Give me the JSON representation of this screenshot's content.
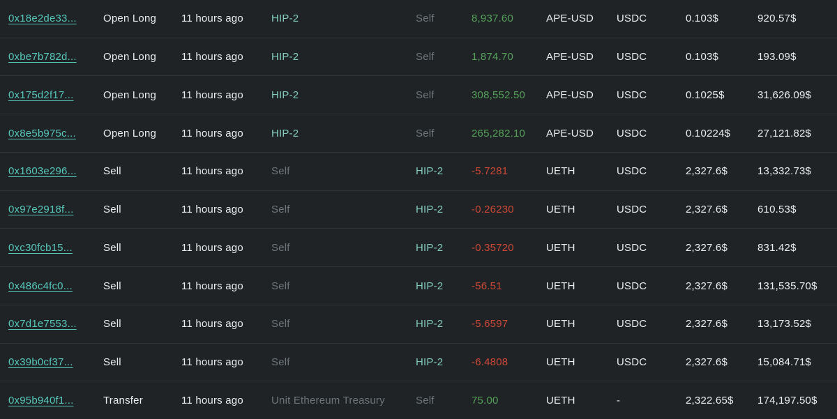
{
  "colors": {
    "background": "#1f2326",
    "accent_teal": "#57c7ba",
    "accent_soft_teal": "#82ccbd",
    "muted_gray": "#6e7679",
    "positive_green": "#55a15a",
    "negative_red": "#cd4736",
    "text_white": "#eceeee"
  },
  "table": {
    "columns": [
      "hash",
      "type",
      "time",
      "from",
      "to",
      "amount",
      "token",
      "quote",
      "price",
      "value"
    ],
    "rows": [
      {
        "hash": "0x18e2de33...",
        "type": "Open Long",
        "time": "11 hours ago",
        "from": "HIP-2",
        "from_class": "accent",
        "to": "Self",
        "to_class": "muted",
        "amount": "8,937.60",
        "amount_class": "pos",
        "token": "APE-USD",
        "quote": "USDC",
        "price": "0.103$",
        "value": "920.57$"
      },
      {
        "hash": "0xbe7b782d...",
        "type": "Open Long",
        "time": "11 hours ago",
        "from": "HIP-2",
        "from_class": "accent",
        "to": "Self",
        "to_class": "muted",
        "amount": "1,874.70",
        "amount_class": "pos",
        "token": "APE-USD",
        "quote": "USDC",
        "price": "0.103$",
        "value": "193.09$"
      },
      {
        "hash": "0x175d2f17...",
        "type": "Open Long",
        "time": "11 hours ago",
        "from": "HIP-2",
        "from_class": "accent",
        "to": "Self",
        "to_class": "muted",
        "amount": "308,552.50",
        "amount_class": "pos",
        "token": "APE-USD",
        "quote": "USDC",
        "price": "0.1025$",
        "value": "31,626.09$"
      },
      {
        "hash": "0x8e5b975c...",
        "type": "Open Long",
        "time": "11 hours ago",
        "from": "HIP-2",
        "from_class": "accent",
        "to": "Self",
        "to_class": "muted",
        "amount": "265,282.10",
        "amount_class": "pos",
        "token": "APE-USD",
        "quote": "USDC",
        "price": "0.10224$",
        "value": "27,121.82$"
      },
      {
        "hash": "0x1603e296...",
        "type": "Sell",
        "time": "11 hours ago",
        "from": "Self",
        "from_class": "muted",
        "to": "HIP-2",
        "to_class": "accent",
        "amount": "-5.7281",
        "amount_class": "neg",
        "token": "UETH",
        "quote": "USDC",
        "price": "2,327.6$",
        "value": "13,332.73$"
      },
      {
        "hash": "0x97e2918f...",
        "type": "Sell",
        "time": "11 hours ago",
        "from": "Self",
        "from_class": "muted",
        "to": "HIP-2",
        "to_class": "accent",
        "amount": "-0.26230",
        "amount_class": "neg",
        "token": "UETH",
        "quote": "USDC",
        "price": "2,327.6$",
        "value": "610.53$"
      },
      {
        "hash": "0xc30fcb15...",
        "type": "Sell",
        "time": "11 hours ago",
        "from": "Self",
        "from_class": "muted",
        "to": "HIP-2",
        "to_class": "accent",
        "amount": "-0.35720",
        "amount_class": "neg",
        "token": "UETH",
        "quote": "USDC",
        "price": "2,327.6$",
        "value": "831.42$"
      },
      {
        "hash": "0x486c4fc0...",
        "type": "Sell",
        "time": "11 hours ago",
        "from": "Self",
        "from_class": "muted",
        "to": "HIP-2",
        "to_class": "accent",
        "amount": "-56.51",
        "amount_class": "neg",
        "token": "UETH",
        "quote": "USDC",
        "price": "2,327.6$",
        "value": "131,535.70$"
      },
      {
        "hash": "0x7d1e7553...",
        "type": "Sell",
        "time": "11 hours ago",
        "from": "Self",
        "from_class": "muted",
        "to": "HIP-2",
        "to_class": "accent",
        "amount": "-5.6597",
        "amount_class": "neg",
        "token": "UETH",
        "quote": "USDC",
        "price": "2,327.6$",
        "value": "13,173.52$"
      },
      {
        "hash": "0x39b0cf37...",
        "type": "Sell",
        "time": "11 hours ago",
        "from": "Self",
        "from_class": "muted",
        "to": "HIP-2",
        "to_class": "accent",
        "amount": "-6.4808",
        "amount_class": "neg",
        "token": "UETH",
        "quote": "USDC",
        "price": "2,327.6$",
        "value": "15,084.71$"
      },
      {
        "hash": "0x95b940f1...",
        "type": "Transfer",
        "time": "11 hours ago",
        "from": "Unit Ethereum Treasury",
        "from_class": "muted",
        "to": "Self",
        "to_class": "muted",
        "amount": "75.00",
        "amount_class": "pos",
        "token": "UETH",
        "quote": "-",
        "price": "2,322.65$",
        "value": "174,197.50$"
      }
    ]
  }
}
